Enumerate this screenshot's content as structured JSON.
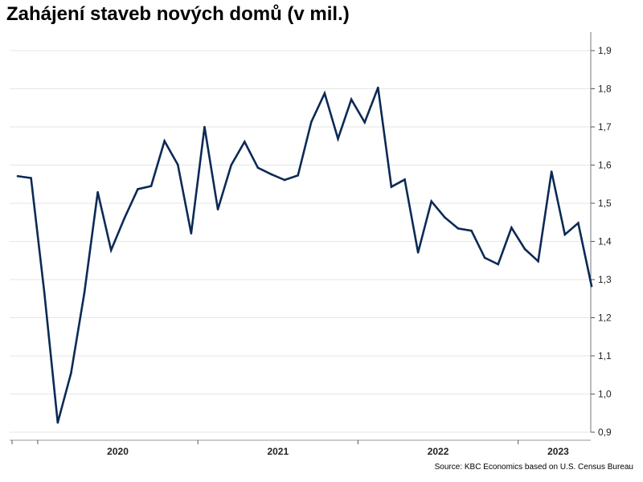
{
  "chart_data": {
    "type": "line",
    "title": "Zahájení staveb nových domů (v mil.)",
    "source": "Source: KBC Economics based on U.S. Census Bureau",
    "xlabel": "",
    "ylabel": "",
    "ylim": [
      0.9,
      1.9
    ],
    "yticks": [
      0.9,
      1.0,
      1.1,
      1.2,
      1.3,
      1.4,
      1.5,
      1.6,
      1.7,
      1.8,
      1.9
    ],
    "ytick_labels": [
      "0,9",
      "1,0",
      "1,1",
      "1,2",
      "1,3",
      "1,4",
      "1,5",
      "1,6",
      "1,7",
      "1,8",
      "1,9"
    ],
    "x_year_labels": [
      "2020",
      "2021",
      "2022",
      "2023"
    ],
    "grid": true,
    "series_color": "#0b2a55",
    "series": [
      {
        "values": [
          1.571,
          1.566,
          1.265,
          0.925,
          1.055,
          1.266,
          1.529,
          1.377,
          1.461,
          1.537,
          1.545,
          1.663,
          1.601,
          1.421,
          1.7,
          1.484,
          1.6,
          1.661,
          1.593,
          1.576,
          1.561,
          1.573,
          1.713,
          1.788,
          1.669,
          1.772,
          1.712,
          1.803,
          1.543,
          1.562,
          1.371,
          1.505,
          1.463,
          1.434,
          1.428,
          1.357,
          1.34,
          1.436,
          1.38,
          1.348,
          1.583,
          1.418,
          1.448,
          1.283
        ]
      }
    ]
  }
}
